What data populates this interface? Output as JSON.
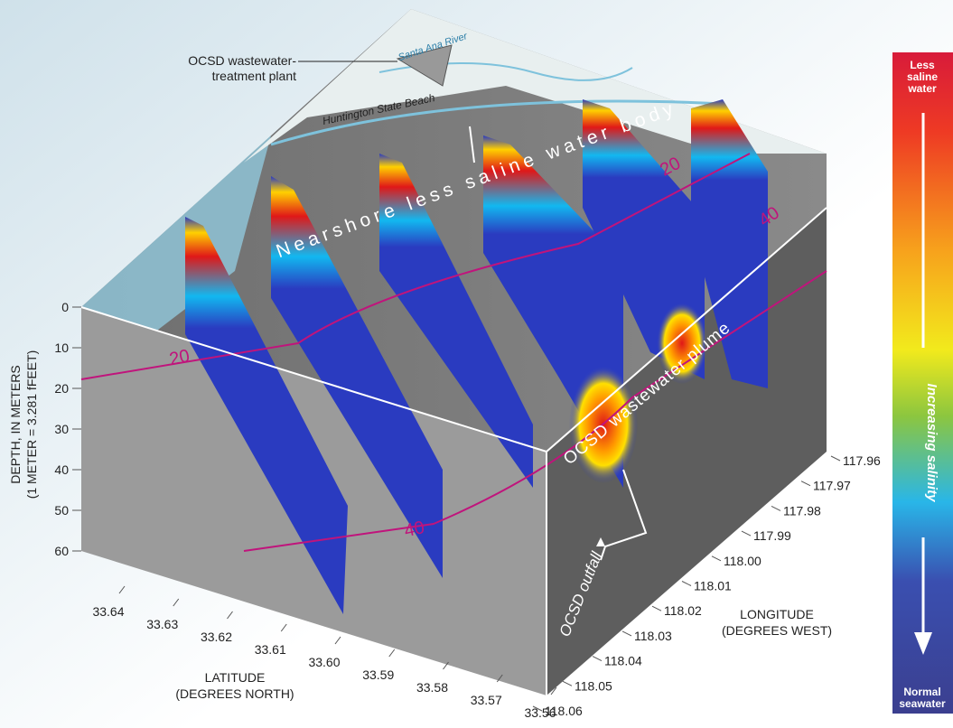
{
  "callouts": {
    "plant": [
      "OCSD wastewater-",
      "treatment plant"
    ],
    "river": "Santa Ana River",
    "beach": "Huntington State Beach",
    "nearshore": "Nearshore less saline water body",
    "plume": "OCSD wastewater plume",
    "outfall": "OCSD outfall"
  },
  "depth_axis": {
    "label": [
      "DEPTH, IN METERS",
      "(1 METER = 3.281 fFEET)"
    ],
    "ticks": [
      "0",
      "10",
      "20",
      "30",
      "40",
      "50",
      "60"
    ]
  },
  "latitude_axis": {
    "label": [
      "LATITUDE",
      "(DEGREES NORTH)"
    ],
    "ticks": [
      "33.64",
      "33.63",
      "33.62",
      "33.61",
      "33.60",
      "33.59",
      "33.58",
      "33.57",
      "33.56"
    ]
  },
  "longitude_axis": {
    "label": [
      "LONGITUDE",
      "(DEGREES WEST)"
    ],
    "ticks": [
      "117.96",
      "117.97",
      "117.98",
      "117.99",
      "118.00",
      "118.01",
      "118.02",
      "118.03",
      "118.04",
      "118.05",
      "118.06"
    ]
  },
  "contours": [
    "20",
    "20",
    "40",
    "40"
  ],
  "legend": {
    "top": [
      "Less",
      "saline",
      "water"
    ],
    "middle": "Increasing salinity",
    "bottom": [
      "Normal",
      "seawater"
    ]
  }
}
